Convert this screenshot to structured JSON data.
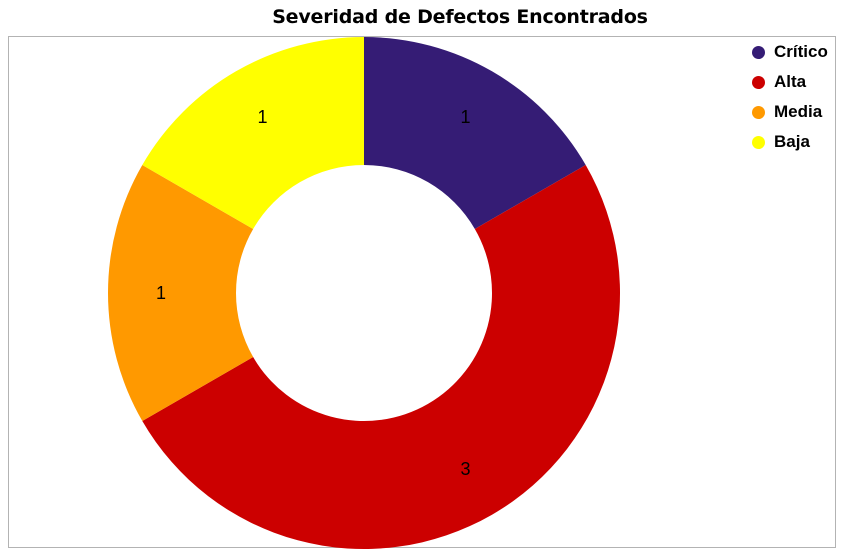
{
  "chart_data": {
    "type": "pie",
    "variant": "donut",
    "title": "Severidad de Defectos Encontrados",
    "categories": [
      "Crítico",
      "Alta",
      "Media",
      "Baja"
    ],
    "values": [
      1,
      3,
      1,
      1
    ],
    "colors": [
      "#351c75",
      "#cc0000",
      "#ff9900",
      "#ffff00"
    ],
    "data_labels": [
      "1",
      "3",
      "1",
      "1"
    ],
    "legend_position": "top-right",
    "start_angle_deg": 0,
    "direction": "clockwise"
  }
}
